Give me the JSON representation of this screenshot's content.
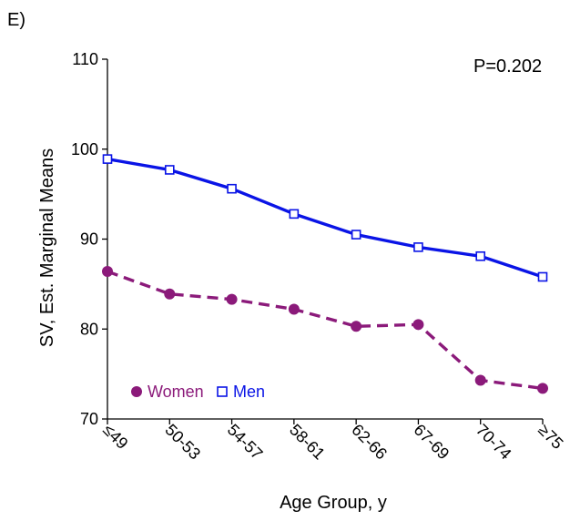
{
  "panel_label": "E)",
  "p_value": "P=0.202",
  "colors": {
    "women": "#8b1a7a",
    "men": "#0a14e6",
    "axis": "#000000"
  },
  "chart_data": {
    "type": "line",
    "title": "",
    "xlabel": "Age Group, y",
    "ylabel": "SV, Est. Marginal Means",
    "categories": [
      "≤49",
      "50-53",
      "54-57",
      "58-61",
      "62-66",
      "67-69",
      "70-74",
      "≥75"
    ],
    "ylim": [
      70,
      110
    ],
    "yticks": [
      70,
      80,
      90,
      100,
      110
    ],
    "grid": false,
    "legend_position": "bottom-left",
    "series": [
      {
        "name": "Women",
        "marker": "filled-circle",
        "line": "dashed",
        "values": [
          86.4,
          83.9,
          83.3,
          82.2,
          80.3,
          80.5,
          74.3,
          73.4
        ]
      },
      {
        "name": "Men",
        "marker": "open-square",
        "line": "solid",
        "values": [
          98.9,
          97.7,
          95.6,
          92.8,
          90.5,
          89.1,
          88.1,
          85.8
        ]
      }
    ]
  }
}
